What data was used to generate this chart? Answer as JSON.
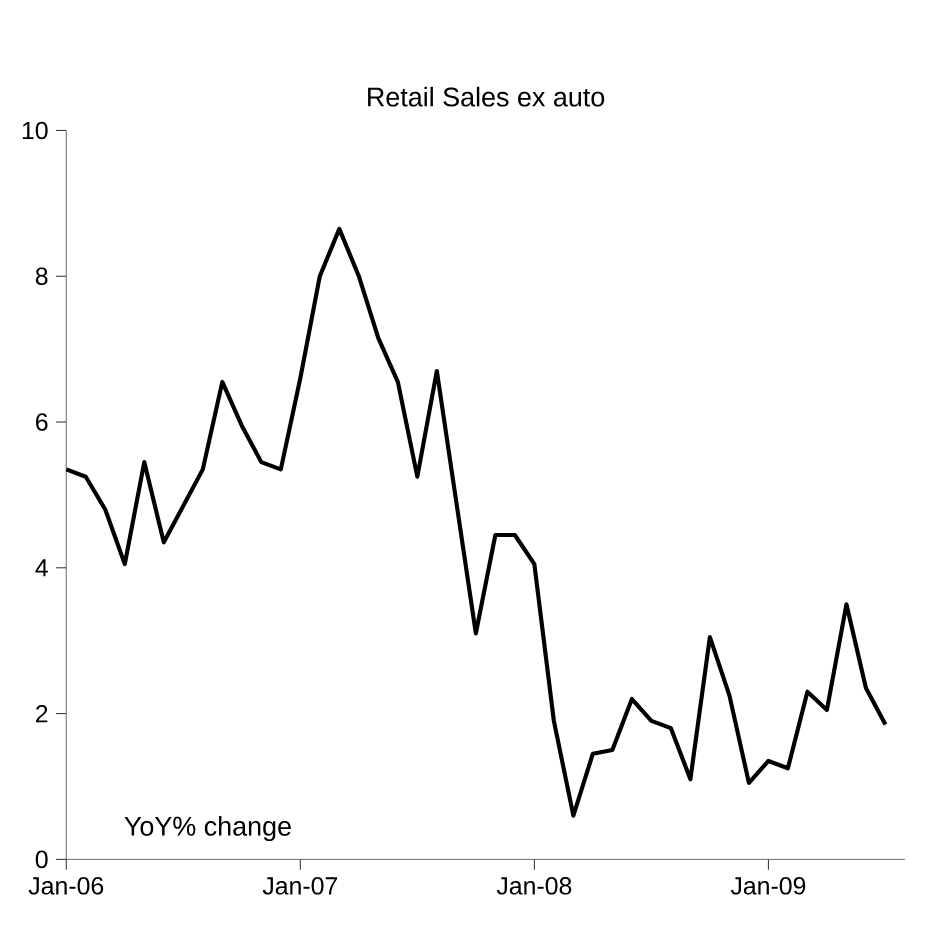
{
  "chart_data": {
    "type": "line",
    "title": "Retail Sales ex auto",
    "annotations": [
      "YoY% change"
    ],
    "x": [
      "2006-01",
      "2006-02",
      "2006-03",
      "2006-04",
      "2006-05",
      "2006-06",
      "2006-07",
      "2006-08",
      "2006-09",
      "2006-10",
      "2006-11",
      "2006-12",
      "2007-01",
      "2007-02",
      "2007-03",
      "2007-04",
      "2007-05",
      "2007-06",
      "2007-07",
      "2007-08",
      "2007-09",
      "2007-10",
      "2007-11",
      "2007-12",
      "2008-01",
      "2008-02",
      "2008-03",
      "2008-04",
      "2008-05",
      "2008-06",
      "2008-07",
      "2008-08",
      "2008-09",
      "2008-10",
      "2008-11",
      "2008-12",
      "2009-01",
      "2009-02",
      "2009-03",
      "2009-04",
      "2009-05",
      "2009-06",
      "2009-07"
    ],
    "series": [
      {
        "color": "#000000",
        "values": [
          5.35,
          5.25,
          4.8,
          4.05,
          5.45,
          4.35,
          4.85,
          5.35,
          6.55,
          5.95,
          5.45,
          5.35,
          6.6,
          8.0,
          8.65,
          8.0,
          7.15,
          6.55,
          5.25,
          6.7,
          4.9,
          3.1,
          4.45,
          4.45,
          4.05,
          1.9,
          0.6,
          1.45,
          1.5,
          2.2,
          1.9,
          1.8,
          1.1,
          3.05,
          2.25,
          1.05,
          1.35,
          1.25,
          2.3,
          2.05,
          3.5,
          2.35,
          1.85
        ]
      }
    ],
    "xlim": [
      "2006-01",
      "2009-08"
    ],
    "xticks": [
      {
        "value": "2006-01",
        "label": "Jan-06"
      },
      {
        "value": "2007-01",
        "label": "Jan-07"
      },
      {
        "value": "2008-01",
        "label": "Jan-08"
      },
      {
        "value": "2009-01",
        "label": "Jan-09"
      }
    ],
    "ylim": [
      0,
      10
    ],
    "yticks": [
      0,
      2,
      4,
      6,
      8,
      10
    ],
    "grid": false,
    "marker": "none",
    "line_style": "solid"
  }
}
